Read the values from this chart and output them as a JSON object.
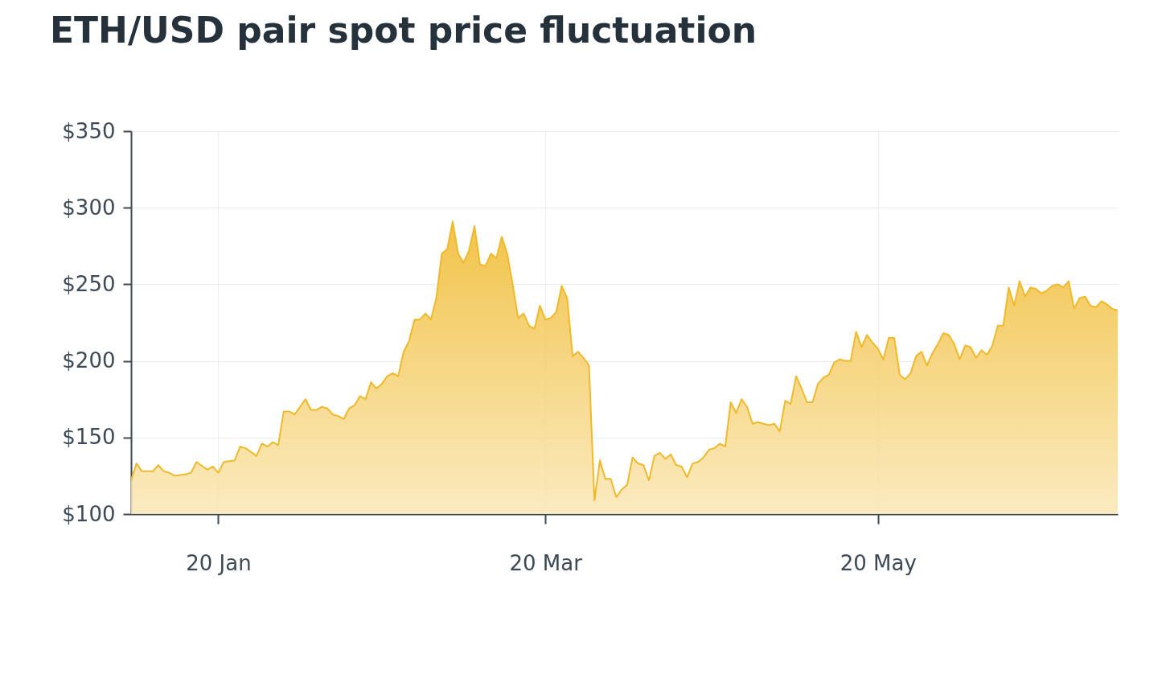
{
  "chart_data": {
    "type": "area",
    "title": "ETH/USD pair spot price fluctuation",
    "x": [
      "--01-04",
      "--01-05",
      "--01-06",
      "--01-08",
      "--01-09",
      "--01-10",
      "--01-11",
      "--01-12",
      "--01-14",
      "--01-15",
      "--01-16",
      "--01-18",
      "--01-19",
      "--01-20",
      "--01-21",
      "--01-23",
      "--01-24",
      "--01-25",
      "--01-27",
      "--01-28",
      "--01-29",
      "--01-30",
      "--01-31",
      "--02-01",
      "--02-02",
      "--02-03",
      "--02-04",
      "--02-05",
      "--02-06",
      "--02-07",
      "--02-08",
      "--02-09",
      "--02-10",
      "--02-11",
      "--02-12",
      "--02-13",
      "--02-14",
      "--02-15",
      "--02-16",
      "--02-17",
      "--02-18",
      "--02-19",
      "--02-20",
      "--02-21",
      "--02-22",
      "--02-23",
      "--02-24",
      "--02-25",
      "--02-26",
      "--02-27",
      "--02-28",
      "--02-29",
      "--03-01",
      "--03-02",
      "--03-03",
      "--03-04",
      "--03-05",
      "--03-06",
      "--03-07",
      "--03-08",
      "--03-09",
      "--03-10",
      "--03-11",
      "--03-12",
      "--03-13",
      "--03-14",
      "--03-15",
      "--03-16",
      "--03-17",
      "--03-18",
      "--03-19",
      "--03-20",
      "--03-21",
      "--03-22",
      "--03-23",
      "--03-24",
      "--03-25",
      "--03-26",
      "--03-27",
      "--03-28",
      "--03-29",
      "--03-30",
      "--03-31",
      "--04-01",
      "--04-02",
      "--04-03",
      "--04-04",
      "--04-05",
      "--04-06",
      "--04-07",
      "--04-08",
      "--04-09",
      "--04-10",
      "--04-11",
      "--04-12",
      "--04-13",
      "--04-14",
      "--04-15",
      "--04-16",
      "--04-17",
      "--04-18",
      "--04-19",
      "--04-20",
      "--04-21",
      "--04-22",
      "--04-23",
      "--04-24",
      "--04-25",
      "--04-26",
      "--04-27",
      "--04-28",
      "--04-29",
      "--04-30",
      "--05-01",
      "--05-02",
      "--05-03",
      "--05-04",
      "--05-05",
      "--05-06",
      "--05-07",
      "--05-08",
      "--05-09",
      "--05-10",
      "--05-11",
      "--05-12",
      "--05-13",
      "--05-14",
      "--05-15",
      "--05-16",
      "--05-17",
      "--05-18",
      "--05-19",
      "--05-20",
      "--05-21",
      "--05-22",
      "--05-23",
      "--05-24",
      "--05-25",
      "--05-26",
      "--05-27",
      "--05-28",
      "--05-29",
      "--05-30",
      "--05-31",
      "--06-01",
      "--06-02",
      "--06-03",
      "--06-04",
      "--06-05",
      "--06-06",
      "--06-07",
      "--06-08",
      "--06-09",
      "--06-10",
      "--06-11",
      "--06-12",
      "--06-13",
      "--06-14",
      "--06-15",
      "--06-16",
      "--06-17",
      "--06-18",
      "--06-19",
      "--06-20",
      "--06-21",
      "--06-22",
      "--06-23",
      "--06-24",
      "--06-25",
      "--06-26",
      "--06-27",
      "--06-28",
      "--06-29",
      "--06-30",
      "--07-01",
      "--07-02",
      "--07-03"
    ],
    "series": [
      {
        "color": "#f0b92a",
        "values": [
          122,
          133,
          128,
          128,
          132,
          128,
          127,
          125,
          126,
          127,
          134,
          129,
          131,
          127,
          134,
          135,
          144,
          143,
          138,
          146,
          144,
          147,
          145,
          167,
          167,
          165,
          170,
          175,
          168,
          168,
          170,
          169,
          165,
          164,
          162,
          169,
          171,
          177,
          175,
          186,
          182,
          185,
          190,
          192,
          190,
          206,
          213,
          227,
          227,
          231,
          227,
          241,
          270,
          273,
          291,
          270,
          264,
          272,
          288,
          263,
          262,
          270,
          267,
          281,
          270,
          250,
          228,
          231,
          223,
          221,
          236,
          227,
          228,
          232,
          249,
          241,
          203,
          206,
          202,
          197,
          109,
          135,
          123,
          123,
          111,
          116,
          119,
          137,
          133,
          132,
          122,
          138,
          140,
          136,
          139,
          132,
          131,
          124,
          133,
          134,
          137,
          142,
          143,
          146,
          144,
          173,
          166,
          175,
          170,
          159,
          160,
          159,
          158,
          159,
          154,
          174,
          172,
          190,
          182,
          173,
          173,
          185,
          189,
          191,
          199,
          201,
          200,
          200,
          219,
          209,
          217,
          212,
          208,
          201,
          215,
          215,
          191,
          188,
          192,
          203,
          206,
          197,
          205,
          211,
          218,
          217,
          211,
          201,
          210,
          209,
          202,
          207,
          204,
          210,
          223,
          223,
          248,
          236,
          252,
          242,
          248,
          247,
          244,
          246,
          249,
          250,
          248,
          252,
          234,
          241,
          242,
          236,
          235,
          239,
          237,
          234,
          233
        ]
      }
    ],
    "xlim": [
      "--01-04",
      "--07-03"
    ],
    "xticks": [
      {
        "value": "--01-20",
        "label": "20 Jan"
      },
      {
        "value": "--03-20",
        "label": "20 Mar"
      },
      {
        "value": "--05-20",
        "label": "20 May"
      }
    ],
    "ylim": [
      100,
      350
    ],
    "yticks": [
      {
        "value": 100,
        "label": "$100"
      },
      {
        "value": 150,
        "label": "$150"
      },
      {
        "value": 200,
        "label": "$200"
      },
      {
        "value": 250,
        "label": "$250"
      },
      {
        "value": 300,
        "label": "$300"
      },
      {
        "value": 350,
        "label": "$350"
      }
    ],
    "grid": true
  }
}
